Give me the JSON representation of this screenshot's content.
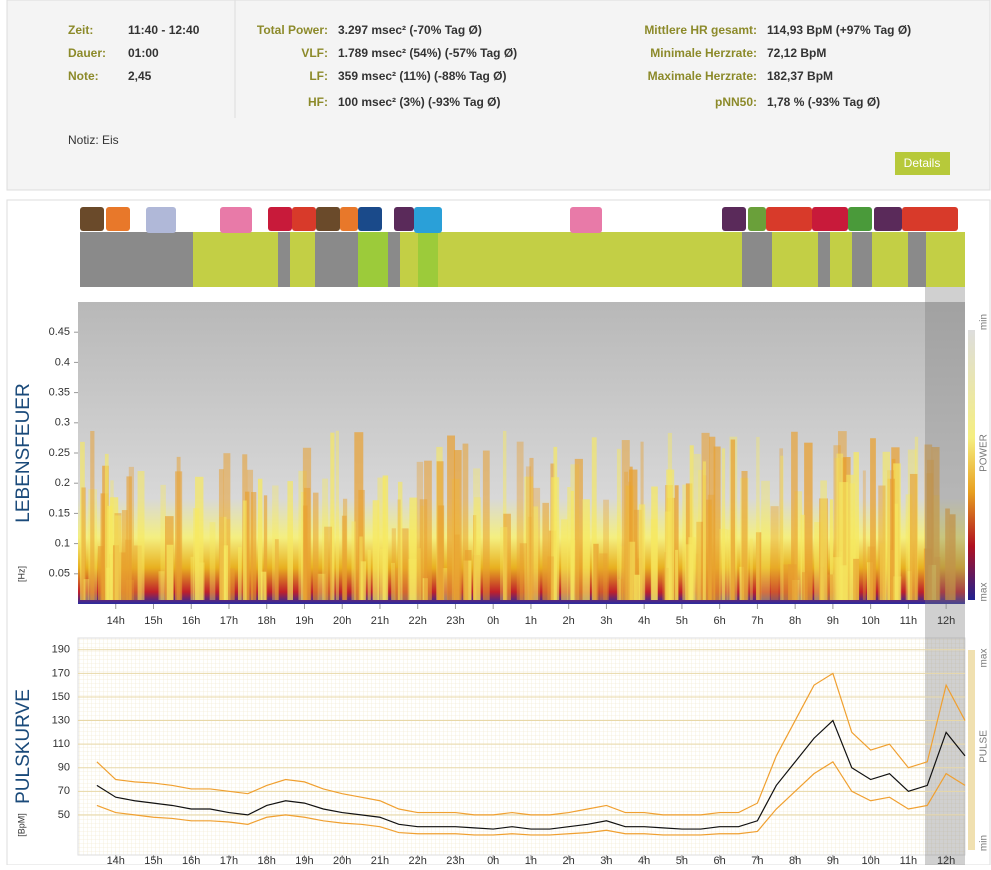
{
  "info": {
    "left": [
      {
        "label": "Zeit:",
        "value": "11:40 - 12:40"
      },
      {
        "label": "Dauer:",
        "value": "01:00"
      },
      {
        "label": "Note:",
        "value": "2,45"
      }
    ],
    "middle": [
      {
        "label": "Total Power:",
        "value": "3.297 msec² (-70% Tag Ø)"
      },
      {
        "label": "VLF:",
        "value": "1.789 msec² (54%) (-57% Tag Ø)"
      },
      {
        "label": "LF:",
        "value": "359 msec² (11%) (-88% Tag Ø)"
      },
      {
        "label": "HF:",
        "value": "100 msec² (3%) (-93% Tag Ø)"
      }
    ],
    "right": [
      {
        "label": "Mittlere HR gesamt:",
        "value": "114,93 BpM (+97% Tag Ø)"
      },
      {
        "label": "Minimale Herzrate:",
        "value": "72,12 BpM"
      },
      {
        "label": "Maximale Herzrate:",
        "value": "182,37 BpM"
      },
      {
        "label": "pNN50:",
        "value": "1,78 % (-93% Tag Ø)"
      }
    ],
    "note": "Notiz: Eis",
    "details_button": "Details"
  },
  "chart_data": [
    {
      "type": "spectrogram",
      "y_title": "LEBENSFEUER",
      "y_unit": "[Hz]",
      "legend": [
        "min",
        "POWER",
        "max"
      ],
      "xlim": [
        13,
        36.5
      ],
      "xticks": [
        {
          "value": 14,
          "label": "14h"
        },
        {
          "value": 15,
          "label": "15h"
        },
        {
          "value": 16,
          "label": "16h"
        },
        {
          "value": 17,
          "label": "17h"
        },
        {
          "value": 18,
          "label": "18h"
        },
        {
          "value": 19,
          "label": "19h"
        },
        {
          "value": 20,
          "label": "20h"
        },
        {
          "value": 21,
          "label": "21h"
        },
        {
          "value": 22,
          "label": "22h"
        },
        {
          "value": 23,
          "label": "23h"
        },
        {
          "value": 24,
          "label": "0h"
        },
        {
          "value": 25,
          "label": "1h"
        },
        {
          "value": 26,
          "label": "2h"
        },
        {
          "value": 27,
          "label": "3h"
        },
        {
          "value": 28,
          "label": "4h"
        },
        {
          "value": 29,
          "label": "5h"
        },
        {
          "value": 30,
          "label": "6h"
        },
        {
          "value": 31,
          "label": "7h"
        },
        {
          "value": 32,
          "label": "8h"
        },
        {
          "value": 33,
          "label": "9h"
        },
        {
          "value": 34,
          "label": "10h"
        },
        {
          "value": 35,
          "label": "11h"
        },
        {
          "value": 36,
          "label": "12h"
        }
      ],
      "ylim": [
        0,
        0.5
      ],
      "yticks": [
        0.05,
        0.1,
        0.15,
        0.2,
        0.25,
        0.3,
        0.35,
        0.4,
        0.45
      ],
      "grid": false
    },
    {
      "type": "line",
      "y_title": "PULSKURVE",
      "y_unit": "[BpM]",
      "legend": [
        "max",
        "PULSE",
        "min"
      ],
      "xlim": [
        13,
        36.5
      ],
      "xticks": [
        {
          "value": 14,
          "label": "14h"
        },
        {
          "value": 15,
          "label": "15h"
        },
        {
          "value": 16,
          "label": "16h"
        },
        {
          "value": 17,
          "label": "17h"
        },
        {
          "value": 18,
          "label": "18h"
        },
        {
          "value": 19,
          "label": "19h"
        },
        {
          "value": 20,
          "label": "20h"
        },
        {
          "value": 21,
          "label": "21h"
        },
        {
          "value": 22,
          "label": "22h"
        },
        {
          "value": 23,
          "label": "23h"
        },
        {
          "value": 24,
          "label": "0h"
        },
        {
          "value": 25,
          "label": "1h"
        },
        {
          "value": 26,
          "label": "2h"
        },
        {
          "value": 27,
          "label": "3h"
        },
        {
          "value": 28,
          "label": "4h"
        },
        {
          "value": 29,
          "label": "5h"
        },
        {
          "value": 30,
          "label": "6h"
        },
        {
          "value": 31,
          "label": "7h"
        },
        {
          "value": 32,
          "label": "8h"
        },
        {
          "value": 33,
          "label": "9h"
        },
        {
          "value": 34,
          "label": "10h"
        },
        {
          "value": 35,
          "label": "11h"
        },
        {
          "value": 36,
          "label": "12h"
        }
      ],
      "ylim": [
        16,
        200
      ],
      "yticks": [
        50,
        70,
        90,
        110,
        130,
        150,
        170,
        190
      ],
      "grid": true,
      "x": [
        13.5,
        14,
        14.5,
        15,
        15.5,
        16,
        16.5,
        17,
        17.5,
        18,
        18.5,
        19,
        19.5,
        20,
        20.5,
        21,
        21.5,
        22,
        22.5,
        23,
        23.5,
        24,
        24.5,
        25,
        25.5,
        26,
        26.5,
        27,
        27.5,
        28,
        28.5,
        29,
        29.5,
        30,
        30.5,
        31,
        31.5,
        32,
        32.5,
        33,
        33.5,
        34,
        34.5,
        35,
        35.5,
        36,
        36.5
      ],
      "series": [
        {
          "color": "#f0a030",
          "values": [
            95,
            80,
            78,
            77,
            75,
            72,
            72,
            70,
            68,
            75,
            80,
            78,
            72,
            68,
            65,
            62,
            55,
            52,
            52,
            52,
            50,
            50,
            52,
            50,
            50,
            52,
            55,
            58,
            52,
            52,
            50,
            50,
            50,
            52,
            52,
            60,
            100,
            130,
            160,
            170,
            120,
            105,
            110,
            90,
            95,
            160,
            130
          ]
        },
        {
          "color": "#f0a030",
          "values": [
            58,
            52,
            50,
            48,
            47,
            45,
            45,
            44,
            42,
            48,
            50,
            48,
            45,
            43,
            42,
            40,
            35,
            34,
            34,
            34,
            33,
            33,
            34,
            33,
            33,
            34,
            35,
            37,
            34,
            34,
            33,
            33,
            33,
            34,
            34,
            36,
            55,
            70,
            85,
            95,
            70,
            62,
            65,
            55,
            58,
            85,
            75
          ]
        },
        {
          "color": "#111111",
          "values": [
            75,
            65,
            62,
            60,
            58,
            55,
            55,
            52,
            50,
            58,
            62,
            60,
            55,
            52,
            50,
            48,
            42,
            40,
            40,
            40,
            39,
            38,
            40,
            38,
            38,
            40,
            42,
            45,
            40,
            40,
            39,
            38,
            38,
            40,
            40,
            45,
            75,
            95,
            115,
            130,
            90,
            80,
            85,
            70,
            75,
            120,
            100
          ]
        }
      ]
    }
  ]
}
